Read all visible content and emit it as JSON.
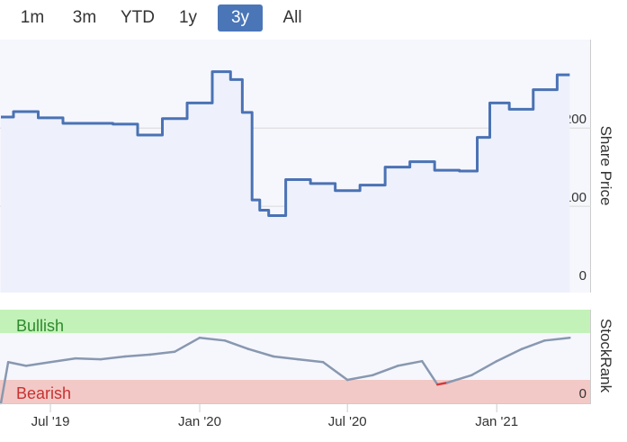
{
  "range_selector": {
    "buttons": [
      {
        "label": "1m",
        "active": false
      },
      {
        "label": "3m",
        "active": false
      },
      {
        "label": "YTD",
        "active": false
      },
      {
        "label": "1y",
        "active": false
      },
      {
        "label": "3y",
        "active": true
      },
      {
        "label": "All",
        "active": false
      }
    ]
  },
  "chart_data": [
    {
      "type": "line",
      "ylabel": "Share Price",
      "ylim": [
        0,
        290
      ],
      "y_ticks": [
        0,
        100,
        200
      ],
      "color": "#4a72b4",
      "grid": true,
      "x": [
        "2019-05",
        "2019-06",
        "2019-07",
        "2019-08",
        "2019-09",
        "2019-10",
        "2019-11",
        "2019-12",
        "2020-01",
        "2020-02",
        "2020-02-15",
        "2020-03",
        "2020-03-10",
        "2020-03-20",
        "2020-04",
        "2020-05",
        "2020-06",
        "2020-07",
        "2020-08",
        "2020-09",
        "2020-10",
        "2020-11",
        "2020-12",
        "2020-12-15",
        "2021-01",
        "2021-02",
        "2021-03",
        "2021-04"
      ],
      "series": [
        {
          "values": [
            214,
            221,
            213,
            206,
            206,
            205,
            191,
            212,
            232,
            272,
            262,
            220,
            108,
            95,
            88,
            134,
            129,
            120,
            127,
            150,
            157,
            146,
            145,
            188,
            232,
            224,
            249,
            268
          ]
        }
      ]
    },
    {
      "type": "line",
      "ylabel": "StockRank",
      "y_ticks": [
        0
      ],
      "ylim": [
        0,
        100
      ],
      "zones": [
        {
          "label": "Bullish",
          "range": [
            75,
            100
          ],
          "color": "#c3f2b8"
        },
        {
          "label": "Bearish",
          "range": [
            0,
            25
          ],
          "color": "#f2c9c6"
        }
      ],
      "x": [
        "2019-05",
        "2019-05-10",
        "2019-06",
        "2019-07",
        "2019-08",
        "2019-09",
        "2019-10",
        "2019-11",
        "2019-12",
        "2020-01",
        "2020-02",
        "2020-03",
        "2020-04",
        "2020-05",
        "2020-06",
        "2020-07",
        "2020-08",
        "2020-09",
        "2020-10",
        "2020-10-20",
        "2020-11",
        "2020-12",
        "2021-01",
        "2021-02",
        "2021-03",
        "2021-04"
      ],
      "series": [
        {
          "values": [
            0,
            44,
            40,
            44,
            48,
            47,
            50,
            52,
            55,
            70,
            67,
            58,
            50,
            47,
            44,
            25,
            30,
            40,
            45,
            20,
            22,
            30,
            45,
            58,
            67,
            70
          ]
        }
      ]
    }
  ],
  "x_axis": {
    "tick_labels": [
      "Jul '19",
      "Jan '20",
      "Jul '20",
      "Jan '21"
    ],
    "tick_dates": [
      "2019-07-01",
      "2020-01-01",
      "2020-07-01",
      "2021-01-01"
    ]
  }
}
